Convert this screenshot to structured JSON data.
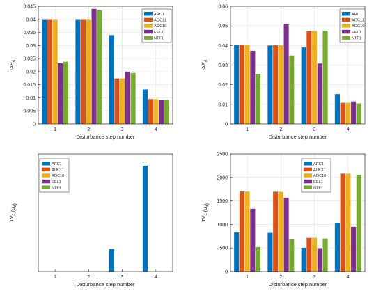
{
  "colors": {
    "ARC1": "#0072BD",
    "AOC11": "#D95319",
    "AOC10": "#EDB120",
    "EEL1": "#7E2F8E",
    "NTF1": "#77AC30",
    "axis": "#262626",
    "grid": "#DFDFDF"
  },
  "chart_data": [
    {
      "type": "bar",
      "panel": "top-left",
      "xlabel": "Disturbance step number",
      "ylabel": "IAE",
      "ylabel_sub": "d",
      "categories": [
        "1",
        "2",
        "3",
        "4"
      ],
      "ylim": [
        0,
        0.045
      ],
      "yticks": [
        "0",
        "0.005",
        "0.01",
        "0.015",
        "0.02",
        "0.025",
        "0.03",
        "0.035",
        "0.04",
        "0.045"
      ],
      "grid": true,
      "legend": "top-right",
      "series": [
        {
          "name": "ARC1",
          "values": [
            0.0398,
            0.0398,
            0.034,
            0.0132
          ]
        },
        {
          "name": "AOC11",
          "values": [
            0.0398,
            0.0398,
            0.0174,
            0.0095
          ]
        },
        {
          "name": "AOC10",
          "values": [
            0.0398,
            0.0398,
            0.0174,
            0.0095
          ]
        },
        {
          "name": "EEL1",
          "values": [
            0.0232,
            0.044,
            0.02,
            0.0091
          ]
        },
        {
          "name": "NTF1",
          "values": [
            0.0238,
            0.0435,
            0.0195,
            0.0092
          ]
        }
      ]
    },
    {
      "type": "bar",
      "panel": "top-right",
      "xlabel": "Disturbance step number",
      "ylabel": "IAE",
      "ylabel_sub": "d",
      "categories": [
        "1",
        "2",
        "3",
        "4"
      ],
      "ylim": [
        0,
        0.06
      ],
      "yticks": [
        "0",
        "0.01",
        "0.02",
        "0.03",
        "0.04",
        "0.05",
        "0.06"
      ],
      "grid": true,
      "legend": "top-right",
      "series": [
        {
          "name": "ARC1",
          "values": [
            0.0403,
            0.04,
            0.039,
            0.0152
          ]
        },
        {
          "name": "AOC11",
          "values": [
            0.0403,
            0.0401,
            0.0474,
            0.0108
          ]
        },
        {
          "name": "AOC10",
          "values": [
            0.0403,
            0.0401,
            0.0474,
            0.0108
          ]
        },
        {
          "name": "EEL1",
          "values": [
            0.0373,
            0.0509,
            0.0308,
            0.0115
          ]
        },
        {
          "name": "NTF1",
          "values": [
            0.0255,
            0.0349,
            0.0476,
            0.0105
          ]
        }
      ]
    },
    {
      "type": "bar",
      "panel": "bottom-left",
      "xlabel": "Disturbance step number",
      "ylabel": "TV",
      "ylabel_sub": "1",
      "ylabel_tail": "(u",
      "ylabel_tail_sub": "d",
      "ylabel_close": ")",
      "categories": [
        "1",
        "2",
        "3",
        "4"
      ],
      "ylim": [
        0,
        0.35
      ],
      "yticks": [],
      "grid": false,
      "legend": "top-left",
      "series": [
        {
          "name": "ARC1",
          "values": [
            0,
            0,
            0.067,
            0.315
          ]
        },
        {
          "name": "AOC11",
          "values": [
            0,
            0,
            0,
            0
          ]
        },
        {
          "name": "AOC10",
          "values": [
            0,
            0,
            0,
            0
          ]
        },
        {
          "name": "EEL1",
          "values": [
            0,
            0,
            0,
            0
          ]
        },
        {
          "name": "NTF1",
          "values": [
            0,
            0,
            0,
            0
          ]
        }
      ]
    },
    {
      "type": "bar",
      "panel": "bottom-right",
      "xlabel": "Disturbance step number",
      "ylabel": "TV",
      "ylabel_sub": "1",
      "ylabel_tail": "(u",
      "ylabel_tail_sub": "d",
      "ylabel_close": ")",
      "categories": [
        "1",
        "2",
        "3",
        "4"
      ],
      "ylim": [
        0,
        2500
      ],
      "yticks": [
        "0",
        "500",
        "1000",
        "1500",
        "2000",
        "2500"
      ],
      "grid": true,
      "legend": "top-left",
      "series": [
        {
          "name": "ARC1",
          "values": [
            840,
            835,
            505,
            1035
          ]
        },
        {
          "name": "AOC11",
          "values": [
            1700,
            1695,
            715,
            2080
          ]
        },
        {
          "name": "AOC10",
          "values": [
            1700,
            1695,
            715,
            2080
          ]
        },
        {
          "name": "EEL1",
          "values": [
            1335,
            1570,
            495,
            950
          ]
        },
        {
          "name": "NTF1",
          "values": [
            520,
            680,
            700,
            2055
          ]
        }
      ]
    }
  ]
}
